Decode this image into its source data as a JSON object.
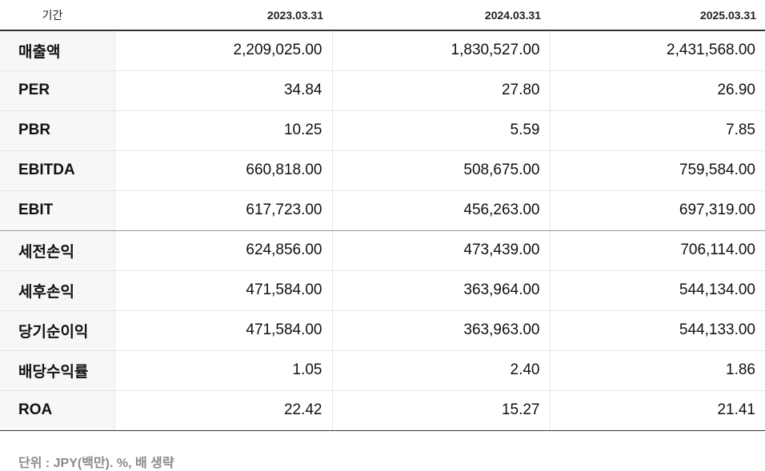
{
  "table": {
    "header_label": "기간",
    "periods": [
      "2023.03.31",
      "2024.03.31",
      "2025.03.31"
    ],
    "rows": [
      {
        "label": "매출액",
        "values": [
          "2,209,025.00",
          "1,830,527.00",
          "2,431,568.00"
        ]
      },
      {
        "label": "PER",
        "values": [
          "34.84",
          "27.80",
          "26.90"
        ]
      },
      {
        "label": "PBR",
        "values": [
          "10.25",
          "5.59",
          "7.85"
        ]
      },
      {
        "label": "EBITDA",
        "values": [
          "660,818.00",
          "508,675.00",
          "759,584.00"
        ]
      },
      {
        "label": "EBIT",
        "values": [
          "617,723.00",
          "456,263.00",
          "697,319.00"
        ]
      },
      {
        "label": "세전손익",
        "values": [
          "624,856.00",
          "473,439.00",
          "706,114.00"
        ]
      },
      {
        "label": "세후손익",
        "values": [
          "471,584.00",
          "363,964.00",
          "544,134.00"
        ]
      },
      {
        "label": "당기순이익",
        "values": [
          "471,584.00",
          "363,963.00",
          "544,133.00"
        ]
      },
      {
        "label": "배당수익률",
        "values": [
          "1.05",
          "2.40",
          "1.86"
        ]
      },
      {
        "label": "ROA",
        "values": [
          "22.42",
          "15.27",
          "21.41"
        ]
      }
    ]
  },
  "note": "단위 : JPY(백만). %, 배 생략"
}
